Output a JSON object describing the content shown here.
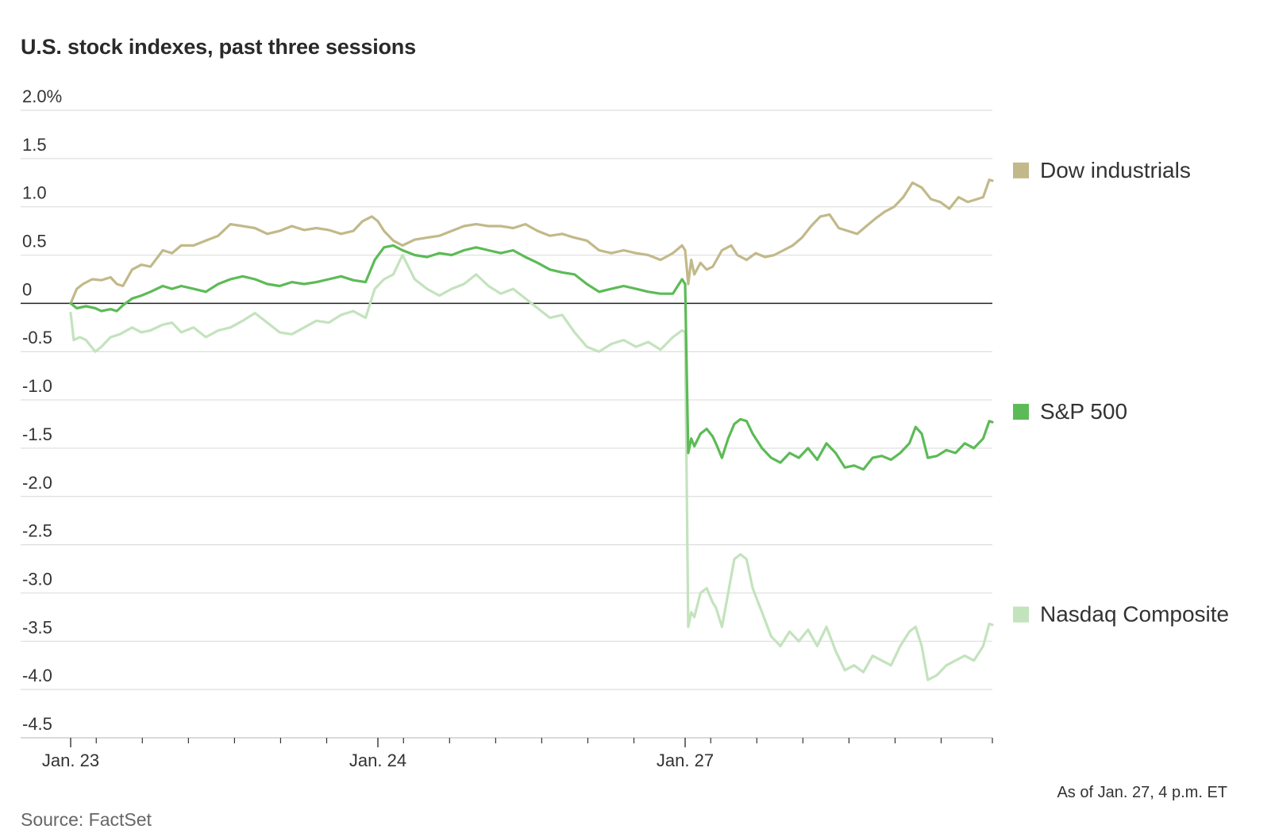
{
  "title": "U.S. stock indexes, past three sessions",
  "as_of": "As of Jan. 27, 4 p.m. ET",
  "source": "Source: FactSet",
  "chart_data": {
    "type": "line",
    "ylim": [
      -4.5,
      2.0
    ],
    "yticks": [
      {
        "value": 2.0,
        "label": "2.0%"
      },
      {
        "value": 1.5,
        "label": "1.5"
      },
      {
        "value": 1.0,
        "label": "1.0"
      },
      {
        "value": 0.5,
        "label": "0.5"
      },
      {
        "value": 0,
        "label": "0"
      },
      {
        "value": -0.5,
        "label": "-0.5"
      },
      {
        "value": -1.0,
        "label": "-1.0"
      },
      {
        "value": -1.5,
        "label": "-1.5"
      },
      {
        "value": -2.0,
        "label": "-2.0"
      },
      {
        "value": -2.5,
        "label": "-2.5"
      },
      {
        "value": -3.0,
        "label": "-3.0"
      },
      {
        "value": -3.5,
        "label": "-3.5"
      },
      {
        "value": -4.0,
        "label": "-4.0"
      },
      {
        "value": -4.5,
        "label": "-4.5"
      }
    ],
    "xlim": [
      0,
      3
    ],
    "xtick_labels": [
      {
        "x": 0,
        "label": "Jan. 23"
      },
      {
        "x": 1,
        "label": "Jan. 24"
      },
      {
        "x": 2,
        "label": "Jan. 27"
      }
    ],
    "minor_ticks": [
      0.0833,
      0.2333,
      0.3833,
      0.5333,
      0.6833,
      0.8333,
      1.0833,
      1.2333,
      1.3833,
      1.5333,
      1.6833,
      1.8333,
      2.0833,
      2.2333,
      2.3833,
      2.5333,
      2.6833,
      2.8333,
      3.0
    ],
    "grid": true,
    "legend_position": "right",
    "series": [
      {
        "name": "Dow industrials",
        "color": "#c2b98a",
        "points": [
          [
            0,
            0
          ],
          [
            0.02,
            0.15
          ],
          [
            0.04,
            0.2
          ],
          [
            0.07,
            0.25
          ],
          [
            0.1,
            0.24
          ],
          [
            0.13,
            0.27
          ],
          [
            0.15,
            0.2
          ],
          [
            0.17,
            0.18
          ],
          [
            0.2,
            0.35
          ],
          [
            0.23,
            0.4
          ],
          [
            0.26,
            0.38
          ],
          [
            0.3,
            0.55
          ],
          [
            0.33,
            0.52
          ],
          [
            0.36,
            0.6
          ],
          [
            0.4,
            0.6
          ],
          [
            0.44,
            0.65
          ],
          [
            0.48,
            0.7
          ],
          [
            0.52,
            0.82
          ],
          [
            0.56,
            0.8
          ],
          [
            0.6,
            0.78
          ],
          [
            0.64,
            0.72
          ],
          [
            0.68,
            0.75
          ],
          [
            0.72,
            0.8
          ],
          [
            0.76,
            0.76
          ],
          [
            0.8,
            0.78
          ],
          [
            0.84,
            0.76
          ],
          [
            0.88,
            0.72
          ],
          [
            0.92,
            0.75
          ],
          [
            0.95,
            0.85
          ],
          [
            0.98,
            0.9
          ],
          [
            1.0,
            0.85
          ],
          [
            1.02,
            0.75
          ],
          [
            1.05,
            0.65
          ],
          [
            1.08,
            0.6
          ],
          [
            1.12,
            0.66
          ],
          [
            1.16,
            0.68
          ],
          [
            1.2,
            0.7
          ],
          [
            1.24,
            0.75
          ],
          [
            1.28,
            0.8
          ],
          [
            1.32,
            0.82
          ],
          [
            1.36,
            0.8
          ],
          [
            1.4,
            0.8
          ],
          [
            1.44,
            0.78
          ],
          [
            1.48,
            0.82
          ],
          [
            1.52,
            0.75
          ],
          [
            1.56,
            0.7
          ],
          [
            1.6,
            0.72
          ],
          [
            1.64,
            0.68
          ],
          [
            1.68,
            0.65
          ],
          [
            1.72,
            0.55
          ],
          [
            1.76,
            0.52
          ],
          [
            1.8,
            0.55
          ],
          [
            1.84,
            0.52
          ],
          [
            1.88,
            0.5
          ],
          [
            1.92,
            0.45
          ],
          [
            1.96,
            0.52
          ],
          [
            1.99,
            0.6
          ],
          [
            2.0,
            0.55
          ],
          [
            2.01,
            0.2
          ],
          [
            2.02,
            0.45
          ],
          [
            2.03,
            0.3
          ],
          [
            2.05,
            0.42
          ],
          [
            2.07,
            0.35
          ],
          [
            2.09,
            0.38
          ],
          [
            2.12,
            0.55
          ],
          [
            2.15,
            0.6
          ],
          [
            2.17,
            0.5
          ],
          [
            2.2,
            0.45
          ],
          [
            2.23,
            0.52
          ],
          [
            2.26,
            0.48
          ],
          [
            2.29,
            0.5
          ],
          [
            2.32,
            0.55
          ],
          [
            2.35,
            0.6
          ],
          [
            2.38,
            0.68
          ],
          [
            2.41,
            0.8
          ],
          [
            2.44,
            0.9
          ],
          [
            2.47,
            0.92
          ],
          [
            2.5,
            0.78
          ],
          [
            2.53,
            0.75
          ],
          [
            2.56,
            0.72
          ],
          [
            2.59,
            0.8
          ],
          [
            2.62,
            0.88
          ],
          [
            2.65,
            0.95
          ],
          [
            2.68,
            1.0
          ],
          [
            2.71,
            1.1
          ],
          [
            2.74,
            1.25
          ],
          [
            2.77,
            1.2
          ],
          [
            2.8,
            1.08
          ],
          [
            2.83,
            1.05
          ],
          [
            2.86,
            0.98
          ],
          [
            2.89,
            1.1
          ],
          [
            2.92,
            1.05
          ],
          [
            2.95,
            1.08
          ],
          [
            2.97,
            1.1
          ],
          [
            2.99,
            1.28
          ],
          [
            3.0,
            1.27
          ]
        ]
      },
      {
        "name": "S&P 500",
        "color": "#5cbb56",
        "points": [
          [
            0,
            0
          ],
          [
            0.02,
            -0.05
          ],
          [
            0.05,
            -0.03
          ],
          [
            0.08,
            -0.05
          ],
          [
            0.1,
            -0.08
          ],
          [
            0.13,
            -0.06
          ],
          [
            0.15,
            -0.08
          ],
          [
            0.17,
            -0.02
          ],
          [
            0.2,
            0.05
          ],
          [
            0.23,
            0.08
          ],
          [
            0.26,
            0.12
          ],
          [
            0.3,
            0.18
          ],
          [
            0.33,
            0.15
          ],
          [
            0.36,
            0.18
          ],
          [
            0.4,
            0.15
          ],
          [
            0.44,
            0.12
          ],
          [
            0.48,
            0.2
          ],
          [
            0.52,
            0.25
          ],
          [
            0.56,
            0.28
          ],
          [
            0.6,
            0.25
          ],
          [
            0.64,
            0.2
          ],
          [
            0.68,
            0.18
          ],
          [
            0.72,
            0.22
          ],
          [
            0.76,
            0.2
          ],
          [
            0.8,
            0.22
          ],
          [
            0.84,
            0.25
          ],
          [
            0.88,
            0.28
          ],
          [
            0.92,
            0.24
          ],
          [
            0.96,
            0.22
          ],
          [
            0.99,
            0.45
          ],
          [
            1.02,
            0.58
          ],
          [
            1.05,
            0.6
          ],
          [
            1.08,
            0.55
          ],
          [
            1.12,
            0.5
          ],
          [
            1.16,
            0.48
          ],
          [
            1.2,
            0.52
          ],
          [
            1.24,
            0.5
          ],
          [
            1.28,
            0.55
          ],
          [
            1.32,
            0.58
          ],
          [
            1.36,
            0.55
          ],
          [
            1.4,
            0.52
          ],
          [
            1.44,
            0.55
          ],
          [
            1.48,
            0.48
          ],
          [
            1.52,
            0.42
          ],
          [
            1.56,
            0.35
          ],
          [
            1.6,
            0.32
          ],
          [
            1.64,
            0.3
          ],
          [
            1.68,
            0.2
          ],
          [
            1.72,
            0.12
          ],
          [
            1.76,
            0.15
          ],
          [
            1.8,
            0.18
          ],
          [
            1.84,
            0.15
          ],
          [
            1.88,
            0.12
          ],
          [
            1.92,
            0.1
          ],
          [
            1.96,
            0.1
          ],
          [
            1.99,
            0.25
          ],
          [
            2.0,
            0.2
          ],
          [
            2.01,
            -1.55
          ],
          [
            2.02,
            -1.4
          ],
          [
            2.03,
            -1.48
          ],
          [
            2.05,
            -1.35
          ],
          [
            2.07,
            -1.3
          ],
          [
            2.09,
            -1.38
          ],
          [
            2.1,
            -1.45
          ],
          [
            2.12,
            -1.6
          ],
          [
            2.14,
            -1.4
          ],
          [
            2.16,
            -1.25
          ],
          [
            2.18,
            -1.2
          ],
          [
            2.2,
            -1.22
          ],
          [
            2.22,
            -1.35
          ],
          [
            2.25,
            -1.5
          ],
          [
            2.28,
            -1.6
          ],
          [
            2.31,
            -1.65
          ],
          [
            2.34,
            -1.55
          ],
          [
            2.37,
            -1.6
          ],
          [
            2.4,
            -1.5
          ],
          [
            2.43,
            -1.62
          ],
          [
            2.46,
            -1.45
          ],
          [
            2.49,
            -1.55
          ],
          [
            2.52,
            -1.7
          ],
          [
            2.55,
            -1.68
          ],
          [
            2.58,
            -1.72
          ],
          [
            2.61,
            -1.6
          ],
          [
            2.64,
            -1.58
          ],
          [
            2.67,
            -1.62
          ],
          [
            2.7,
            -1.55
          ],
          [
            2.73,
            -1.45
          ],
          [
            2.75,
            -1.28
          ],
          [
            2.77,
            -1.35
          ],
          [
            2.79,
            -1.6
          ],
          [
            2.82,
            -1.58
          ],
          [
            2.85,
            -1.52
          ],
          [
            2.88,
            -1.55
          ],
          [
            2.91,
            -1.45
          ],
          [
            2.94,
            -1.5
          ],
          [
            2.97,
            -1.4
          ],
          [
            2.99,
            -1.22
          ],
          [
            3.0,
            -1.23
          ]
        ]
      },
      {
        "name": "Nasdaq Composite",
        "color": "#c3e3bd",
        "points": [
          [
            0,
            -0.1
          ],
          [
            0.01,
            -0.38
          ],
          [
            0.03,
            -0.35
          ],
          [
            0.05,
            -0.38
          ],
          [
            0.08,
            -0.5
          ],
          [
            0.1,
            -0.45
          ],
          [
            0.13,
            -0.35
          ],
          [
            0.16,
            -0.32
          ],
          [
            0.2,
            -0.25
          ],
          [
            0.23,
            -0.3
          ],
          [
            0.26,
            -0.28
          ],
          [
            0.3,
            -0.22
          ],
          [
            0.33,
            -0.2
          ],
          [
            0.36,
            -0.3
          ],
          [
            0.4,
            -0.25
          ],
          [
            0.44,
            -0.35
          ],
          [
            0.48,
            -0.28
          ],
          [
            0.52,
            -0.25
          ],
          [
            0.56,
            -0.18
          ],
          [
            0.6,
            -0.1
          ],
          [
            0.64,
            -0.2
          ],
          [
            0.68,
            -0.3
          ],
          [
            0.72,
            -0.32
          ],
          [
            0.76,
            -0.25
          ],
          [
            0.8,
            -0.18
          ],
          [
            0.84,
            -0.2
          ],
          [
            0.88,
            -0.12
          ],
          [
            0.92,
            -0.08
          ],
          [
            0.96,
            -0.15
          ],
          [
            0.99,
            0.15
          ],
          [
            1.02,
            0.25
          ],
          [
            1.05,
            0.3
          ],
          [
            1.08,
            0.5
          ],
          [
            1.12,
            0.25
          ],
          [
            1.16,
            0.15
          ],
          [
            1.2,
            0.08
          ],
          [
            1.24,
            0.15
          ],
          [
            1.28,
            0.2
          ],
          [
            1.32,
            0.3
          ],
          [
            1.36,
            0.18
          ],
          [
            1.4,
            0.1
          ],
          [
            1.44,
            0.15
          ],
          [
            1.48,
            0.05
          ],
          [
            1.52,
            -0.05
          ],
          [
            1.56,
            -0.15
          ],
          [
            1.6,
            -0.12
          ],
          [
            1.64,
            -0.3
          ],
          [
            1.68,
            -0.45
          ],
          [
            1.72,
            -0.5
          ],
          [
            1.76,
            -0.42
          ],
          [
            1.8,
            -0.38
          ],
          [
            1.84,
            -0.45
          ],
          [
            1.88,
            -0.4
          ],
          [
            1.92,
            -0.48
          ],
          [
            1.96,
            -0.35
          ],
          [
            1.99,
            -0.28
          ],
          [
            2.0,
            -0.3
          ],
          [
            2.01,
            -3.35
          ],
          [
            2.02,
            -3.2
          ],
          [
            2.03,
            -3.25
          ],
          [
            2.05,
            -3.0
          ],
          [
            2.07,
            -2.95
          ],
          [
            2.09,
            -3.1
          ],
          [
            2.1,
            -3.15
          ],
          [
            2.12,
            -3.35
          ],
          [
            2.14,
            -3.0
          ],
          [
            2.16,
            -2.65
          ],
          [
            2.18,
            -2.6
          ],
          [
            2.2,
            -2.65
          ],
          [
            2.22,
            -2.95
          ],
          [
            2.25,
            -3.2
          ],
          [
            2.28,
            -3.45
          ],
          [
            2.31,
            -3.55
          ],
          [
            2.34,
            -3.4
          ],
          [
            2.37,
            -3.5
          ],
          [
            2.4,
            -3.38
          ],
          [
            2.43,
            -3.55
          ],
          [
            2.46,
            -3.35
          ],
          [
            2.49,
            -3.6
          ],
          [
            2.52,
            -3.8
          ],
          [
            2.55,
            -3.75
          ],
          [
            2.58,
            -3.82
          ],
          [
            2.61,
            -3.65
          ],
          [
            2.64,
            -3.7
          ],
          [
            2.67,
            -3.75
          ],
          [
            2.7,
            -3.55
          ],
          [
            2.73,
            -3.4
          ],
          [
            2.75,
            -3.35
          ],
          [
            2.77,
            -3.55
          ],
          [
            2.79,
            -3.9
          ],
          [
            2.82,
            -3.85
          ],
          [
            2.85,
            -3.75
          ],
          [
            2.88,
            -3.7
          ],
          [
            2.91,
            -3.65
          ],
          [
            2.94,
            -3.7
          ],
          [
            2.97,
            -3.55
          ],
          [
            2.99,
            -3.32
          ],
          [
            3.0,
            -3.33
          ]
        ]
      }
    ]
  }
}
